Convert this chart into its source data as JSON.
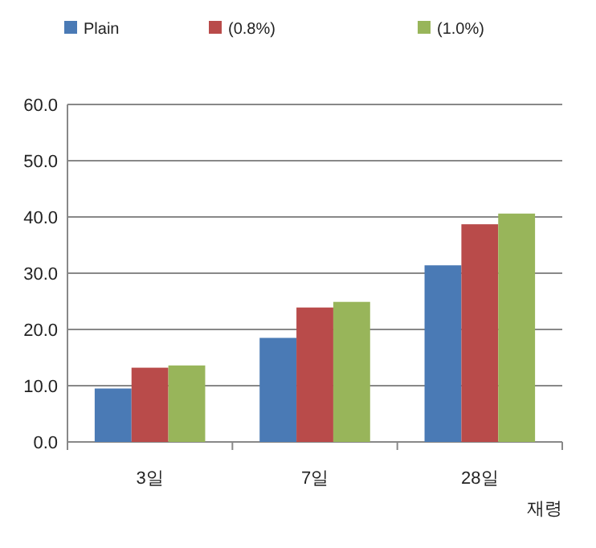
{
  "chart_data": {
    "type": "bar",
    "xlabel": "재령",
    "categories": [
      "3일",
      "7일",
      "28일"
    ],
    "series": [
      {
        "name": "Plain",
        "color": "#4a7ab5",
        "values": [
          9.5,
          18.5,
          31.4
        ]
      },
      {
        "name": "(0.8%)",
        "color": "#b94b4a",
        "values": [
          13.2,
          23.9,
          38.7
        ]
      },
      {
        "name": "(1.0%)",
        "color": "#98b55a",
        "values": [
          13.6,
          24.9,
          40.6
        ]
      }
    ],
    "ylim": [
      0,
      60
    ],
    "yticks": [
      {
        "value": 0,
        "label": "0.0"
      },
      {
        "value": 10,
        "label": "10.0"
      },
      {
        "value": 20,
        "label": "20.0"
      },
      {
        "value": 30,
        "label": "30.0"
      },
      {
        "value": 40,
        "label": "40.0"
      },
      {
        "value": 50,
        "label": "50.0"
      },
      {
        "value": 60,
        "label": "60.0"
      }
    ],
    "grid": "y",
    "legend": "top"
  }
}
